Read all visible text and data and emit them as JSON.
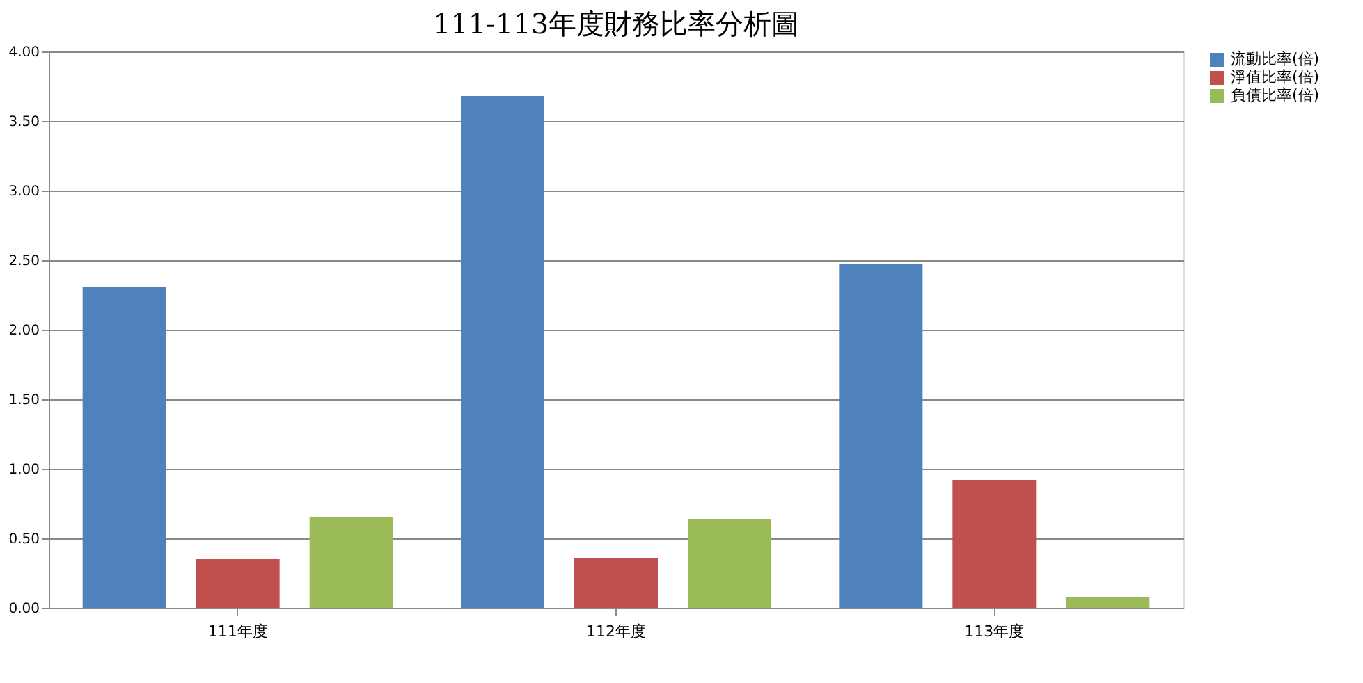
{
  "chart_data": {
    "type": "bar",
    "title": "111-113年度財務比率分析圖",
    "categories": [
      "111年度",
      "112年度",
      "113年度"
    ],
    "series": [
      {
        "name": "流動比率(倍)",
        "color": "#4f81bd",
        "values": [
          2.31,
          3.68,
          2.47
        ]
      },
      {
        "name": "淨值比率(倍)",
        "color": "#c0504d",
        "values": [
          0.35,
          0.36,
          0.92
        ]
      },
      {
        "name": "負債比率(倍)",
        "color": "#9bbb59",
        "values": [
          0.65,
          0.64,
          0.08
        ]
      }
    ],
    "ylim": [
      0,
      4
    ],
    "yticks": [
      {
        "value": 0,
        "label": "0.00"
      },
      {
        "value": 0.5,
        "label": "0.50"
      },
      {
        "value": 1,
        "label": "1.00"
      },
      {
        "value": 1.5,
        "label": "1.50"
      },
      {
        "value": 2,
        "label": "2.00"
      },
      {
        "value": 2.5,
        "label": "2.50"
      },
      {
        "value": 3,
        "label": "3.00"
      },
      {
        "value": 3.5,
        "label": "3.50"
      },
      {
        "value": 4,
        "label": "4.00"
      }
    ],
    "grid": "y",
    "legend": "right"
  }
}
